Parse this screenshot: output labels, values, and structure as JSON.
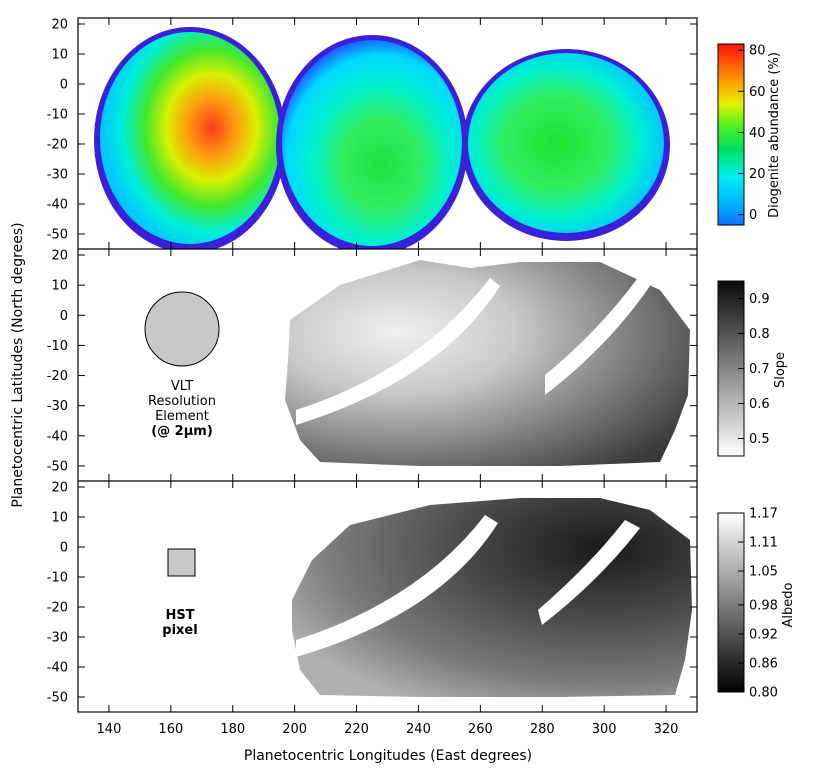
{
  "chart_data": {
    "type": "heatmap",
    "xlabel": "Planetocentric Longitudes (East degrees)",
    "ylabel": "Planetocentric Latitudes (North degrees)",
    "xlim": [
      130,
      330
    ],
    "x_ticks": [
      140,
      160,
      180,
      200,
      220,
      240,
      260,
      280,
      300,
      320
    ],
    "panels": [
      {
        "id": "diogenite",
        "ylim": [
          -55,
          22
        ],
        "y_ticks": [
          20,
          10,
          0,
          -10,
          -20,
          -30,
          -40,
          -50
        ],
        "colorbar": {
          "label": "Diogenite abundance (%)",
          "colormap": "rainbow",
          "range": [
            -5,
            83
          ],
          "ticks": [
            0,
            20,
            40,
            60,
            80
          ]
        },
        "annotation": [],
        "marker": "none"
      },
      {
        "id": "slope",
        "ylim": [
          -55,
          22
        ],
        "y_ticks": [
          20,
          10,
          0,
          -10,
          -20,
          -30,
          -40,
          -50
        ],
        "colorbar": {
          "label": "Slope",
          "colormap": "gray_reversed",
          "range": [
            0.45,
            0.95
          ],
          "ticks": [
            0.5,
            0.6,
            0.7,
            0.8,
            0.9
          ]
        },
        "annotation": [
          "VLT",
          "Resolution",
          "Element",
          "(@ 2μm)"
        ],
        "marker": "circle"
      },
      {
        "id": "albedo",
        "ylim": [
          -55,
          22
        ],
        "y_ticks": [
          20,
          10,
          0,
          -10,
          -20,
          -30,
          -40,
          -50
        ],
        "colorbar": {
          "label": "Albedo",
          "colormap": "gray",
          "range": [
            0.8,
            1.17
          ],
          "ticks": [
            0.8,
            0.86,
            0.92,
            0.98,
            1.05,
            1.11,
            1.17
          ],
          "tick_labels": [
            "0.80",
            "0.86",
            "0.92",
            "0.98",
            "1.05",
            "1.11",
            "1.17"
          ]
        },
        "annotation": [
          "HST",
          "pixel"
        ],
        "marker": "square"
      }
    ],
    "grid": false,
    "legend": "none"
  }
}
